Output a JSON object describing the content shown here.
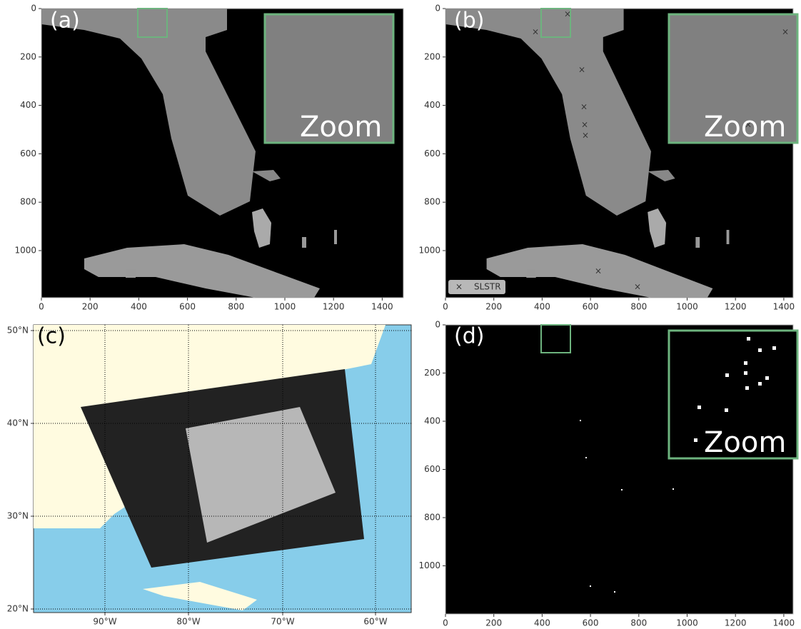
{
  "panels": [
    {
      "label": "(a)",
      "xticks": [
        0,
        200,
        400,
        600,
        800,
        1000,
        1200,
        1400
      ],
      "yticks": [
        0,
        200,
        400,
        600,
        800,
        1000
      ],
      "inset": "Zoom"
    },
    {
      "label": "(b)",
      "xticks": [
        0,
        200,
        400,
        600,
        800,
        1000,
        1200,
        1400
      ],
      "yticks": [
        0,
        200,
        400,
        600,
        800,
        1000
      ],
      "inset": "Zoom",
      "legend": "SLSTR"
    },
    {
      "label": "(c)",
      "xticks": [
        "90°W",
        "80°W",
        "70°W",
        "60°W"
      ],
      "yticks": [
        "50°N",
        "40°N",
        "30°N",
        "20°N"
      ]
    },
    {
      "label": "(d)",
      "xticks": [
        0,
        200,
        400,
        600,
        800,
        1000,
        1200,
        1400
      ],
      "yticks": [
        0,
        200,
        400,
        600,
        800,
        1000
      ],
      "inset": "Zoom"
    }
  ]
}
